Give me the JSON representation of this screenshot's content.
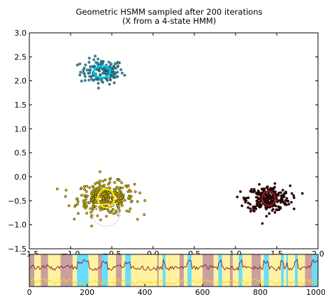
{
  "chart_data": [
    {
      "type": "scatter",
      "title": "Geometric HSMM sampled after 200 iterations",
      "subtitle": "(X from a 4-state HMM)",
      "xlim": [
        -1.5,
        2.0
      ],
      "ylim": [
        -1.5,
        3.0
      ],
      "x_ticks": [
        "−1.5",
        "−1.0",
        "−0.5",
        "0.0",
        "0.5",
        "1.0",
        "1.5",
        "2.0"
      ],
      "y_ticks": [
        "3.0",
        "2.5",
        "2.0",
        "1.5",
        "1.0",
        "0.5",
        "0.0",
        "−0.5",
        "−1.0",
        "−1.5"
      ],
      "grid": false,
      "clusters": [
        {
          "center": [
            -0.62,
            2.19
          ],
          "spread": [
            0.13,
            0.13
          ],
          "count": 140,
          "color": "#00c8ff",
          "ellipse_radius": [
            0.1,
            0.12
          ],
          "point_color": "#2aa0b8"
        },
        {
          "center": [
            -0.57,
            -0.45
          ],
          "spread": [
            0.17,
            0.17
          ],
          "count": 330,
          "color": "#ffe000",
          "ellipse_radius": [
            0.1,
            0.19
          ],
          "point_color": "#c8b000"
        },
        {
          "center": [
            1.4,
            -0.45
          ],
          "spread": [
            0.13,
            0.13
          ],
          "count": 260,
          "color": "#8b1a1a",
          "ellipse_radius": [
            0.08,
            0.15
          ],
          "point_color": "#3a0a0a"
        }
      ],
      "faint_ellipse": {
        "center": [
          -0.57,
          -0.8
        ],
        "radius": [
          0.16,
          0.23
        ],
        "color": "#e8e8e8"
      }
    },
    {
      "type": "area",
      "xlim": [
        0,
        1000
      ],
      "x_ticks": [
        "0",
        "200",
        "400",
        "600",
        "800",
        "1000"
      ],
      "state_colors": {
        "cyan": "#66ddff",
        "yellow": "#fff2a0",
        "maroon": "#c8a0a0"
      },
      "segments": [
        [
          0,
          17,
          "maroon"
        ],
        [
          17,
          40,
          "yellow"
        ],
        [
          40,
          65,
          "maroon"
        ],
        [
          65,
          108,
          "yellow"
        ],
        [
          108,
          150,
          "maroon"
        ],
        [
          150,
          165,
          "yellow"
        ],
        [
          165,
          205,
          "cyan"
        ],
        [
          205,
          238,
          "yellow"
        ],
        [
          238,
          252,
          "maroon"
        ],
        [
          252,
          272,
          "cyan"
        ],
        [
          272,
          300,
          "yellow"
        ],
        [
          300,
          320,
          "maroon"
        ],
        [
          320,
          332,
          "yellow"
        ],
        [
          332,
          352,
          "cyan"
        ],
        [
          352,
          443,
          "yellow"
        ],
        [
          443,
          448,
          "maroon"
        ],
        [
          448,
          462,
          "yellow"
        ],
        [
          462,
          472,
          "cyan"
        ],
        [
          472,
          520,
          "yellow"
        ],
        [
          520,
          535,
          "maroon"
        ],
        [
          535,
          548,
          "yellow"
        ],
        [
          548,
          562,
          "cyan"
        ],
        [
          562,
          600,
          "yellow"
        ],
        [
          600,
          638,
          "maroon"
        ],
        [
          638,
          655,
          "yellow"
        ],
        [
          655,
          668,
          "cyan"
        ],
        [
          668,
          695,
          "yellow"
        ],
        [
          695,
          705,
          "maroon"
        ],
        [
          705,
          725,
          "yellow"
        ],
        [
          725,
          738,
          "cyan"
        ],
        [
          738,
          770,
          "yellow"
        ],
        [
          770,
          802,
          "maroon"
        ],
        [
          802,
          812,
          "yellow"
        ],
        [
          812,
          830,
          "cyan"
        ],
        [
          830,
          872,
          "yellow"
        ],
        [
          872,
          882,
          "cyan"
        ],
        [
          882,
          890,
          "yellow"
        ],
        [
          890,
          896,
          "cyan"
        ],
        [
          896,
          920,
          "yellow"
        ],
        [
          920,
          930,
          "cyan"
        ],
        [
          930,
          955,
          "yellow"
        ],
        [
          955,
          980,
          "maroon"
        ],
        [
          980,
          1000,
          "cyan"
        ]
      ],
      "line_colors": {
        "x_trace": "#ffd700",
        "y_trace": "#8b1a1a"
      }
    }
  ]
}
